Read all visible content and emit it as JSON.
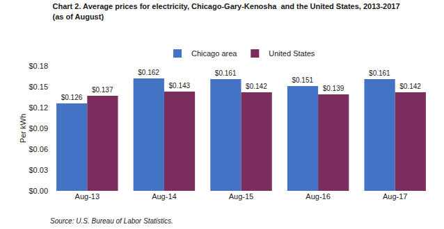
{
  "chart_data": {
    "type": "bar",
    "title": "Chart 2. Average prices for electricity, Chicago-Gary-Kenosha  and the United States, 2013-2017",
    "subtitle": "(as of August)",
    "ylabel": "Per kWh",
    "annotations": [
      "Source: U.S. Bureau of Labor Statistics."
    ],
    "categories": [
      "Aug-13",
      "Aug-14",
      "Aug-15",
      "Aug-16",
      "Aug-17"
    ],
    "series": [
      {
        "name": "Chicago area",
        "color": "#4472C4",
        "values": [
          0.126,
          0.162,
          0.161,
          0.151,
          0.161
        ],
        "value_labels": [
          "$0.126",
          "$0.162",
          "$0.161",
          "$0.151",
          "$0.161"
        ]
      },
      {
        "name": "United States",
        "color": "#7B2D5E",
        "values": [
          0.137,
          0.143,
          0.142,
          0.139,
          0.142
        ],
        "value_labels": [
          "$0.137",
          "$0.143",
          "$0.142",
          "$0.139",
          "$0.142"
        ]
      }
    ],
    "ylim": [
      0,
      0.18
    ],
    "yticks": [
      {
        "value": 0.0,
        "label": "$0.00"
      },
      {
        "value": 0.03,
        "label": "$0.03"
      },
      {
        "value": 0.06,
        "label": "$0.06"
      },
      {
        "value": 0.09,
        "label": "$0.09"
      },
      {
        "value": 0.12,
        "label": "$0.12"
      },
      {
        "value": 0.15,
        "label": "$0.15"
      },
      {
        "value": 0.18,
        "label": "$0.18"
      }
    ],
    "data_labels": true,
    "legend": "top",
    "grid": false
  }
}
